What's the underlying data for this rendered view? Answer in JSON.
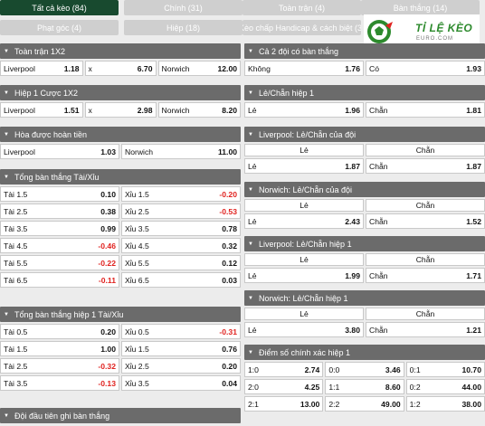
{
  "tabs": [
    {
      "label": "Tất cả kèo (84)",
      "active": true
    },
    {
      "label": "Chính (31)"
    },
    {
      "label": "Toàn trận (4)"
    },
    {
      "label": "Bàn thắng (14)"
    },
    {
      "label": "Phạt góc (4)"
    },
    {
      "label": "Hiệp (18)"
    },
    {
      "label": "Kèo chấp Handicap & cách biệt (3)"
    }
  ],
  "logo": {
    "text": "TỈ LỆ KÈO",
    "sub": "EURO.COM"
  },
  "colors": {
    "active_tab": "#184a2f",
    "header": "#6b6b6b",
    "negative": "#e0221f",
    "logo_green": "#2d8a2d"
  },
  "markets_left": [
    {
      "title": "Toàn trận 1X2",
      "rows": [
        [
          {
            "l": "Liverpool",
            "v": "1.18"
          },
          {
            "l": "x",
            "v": "6.70"
          },
          {
            "l": "Norwich",
            "v": "12.00"
          }
        ]
      ]
    },
    {
      "title": "Hiệp 1 Cược 1X2",
      "rows": [
        [
          {
            "l": "Liverpool",
            "v": "1.51"
          },
          {
            "l": "x",
            "v": "2.98"
          },
          {
            "l": "Norwich",
            "v": "8.20"
          }
        ]
      ]
    },
    {
      "title": "Hòa được hoàn tiền",
      "rows": [
        [
          {
            "l": "Liverpool",
            "v": "1.03"
          },
          {
            "l": "Norwich",
            "v": "11.00"
          }
        ]
      ]
    },
    {
      "title": "Tổng bàn thắng Tài/Xỉu",
      "rows": [
        [
          {
            "l": "Tài 1.5",
            "v": "0.10"
          },
          {
            "l": "Xỉu 1.5",
            "v": "-0.20",
            "n": true
          }
        ],
        [
          {
            "l": "Tài 2.5",
            "v": "0.38"
          },
          {
            "l": "Xỉu 2.5",
            "v": "-0.53",
            "n": true
          }
        ],
        [
          {
            "l": "Tài 3.5",
            "v": "0.99"
          },
          {
            "l": "Xỉu 3.5",
            "v": "0.78"
          }
        ],
        [
          {
            "l": "Tài 4.5",
            "v": "-0.46",
            "n": true
          },
          {
            "l": "Xỉu 4.5",
            "v": "0.32"
          }
        ],
        [
          {
            "l": "Tài 5.5",
            "v": "-0.22",
            "n": true
          },
          {
            "l": "Xỉu 5.5",
            "v": "0.12"
          }
        ],
        [
          {
            "l": "Tài 6.5",
            "v": "-0.11",
            "n": true
          },
          {
            "l": "Xỉu 6.5",
            "v": "0.03"
          }
        ]
      ]
    },
    {
      "title": "Tổng bàn thắng hiệp 1 Tài/Xỉu",
      "rows": [
        [
          {
            "l": "Tài 0.5",
            "v": "0.20"
          },
          {
            "l": "Xỉu 0.5",
            "v": "-0.31",
            "n": true
          }
        ],
        [
          {
            "l": "Tài 1.5",
            "v": "1.00"
          },
          {
            "l": "Xỉu 1.5",
            "v": "0.76"
          }
        ],
        [
          {
            "l": "Tài 2.5",
            "v": "-0.32",
            "n": true
          },
          {
            "l": "Xỉu 2.5",
            "v": "0.20"
          }
        ],
        [
          {
            "l": "Tài 3.5",
            "v": "-0.13",
            "n": true
          },
          {
            "l": "Xỉu 3.5",
            "v": "0.04"
          }
        ]
      ]
    },
    {
      "title": "Đội đầu tiên ghi bàn thắng",
      "rows": []
    }
  ],
  "markets_right": [
    {
      "title": "Cả 2 đội có bàn thắng",
      "rows": [
        [
          {
            "l": "Không",
            "v": "1.76"
          },
          {
            "l": "Có",
            "v": "1.93"
          }
        ]
      ]
    },
    {
      "title": "Lẻ/Chẵn hiệp 1",
      "rows": [
        [
          {
            "l": "Lẻ",
            "v": "1.96"
          },
          {
            "l": "Chẵn",
            "v": "1.81"
          }
        ]
      ]
    },
    {
      "title": "Liverpool: Lẻ/Chẵn của đội",
      "heads": [
        "Lẻ",
        "Chẵn"
      ],
      "rows": [
        [
          {
            "l": "Lẻ",
            "v": "1.87"
          },
          {
            "l": "Chẵn",
            "v": "1.87"
          }
        ]
      ]
    },
    {
      "title": "Norwich: Lẻ/Chẵn của đội",
      "heads": [
        "Lẻ",
        "Chẵn"
      ],
      "rows": [
        [
          {
            "l": "Lẻ",
            "v": "2.43"
          },
          {
            "l": "Chẵn",
            "v": "1.52"
          }
        ]
      ]
    },
    {
      "title": "Liverpool: Lẻ/Chẵn hiệp 1",
      "heads": [
        "Lẻ",
        "Chẵn"
      ],
      "rows": [
        [
          {
            "l": "Lẻ",
            "v": "1.99"
          },
          {
            "l": "Chẵn",
            "v": "1.71"
          }
        ]
      ]
    },
    {
      "title": "Norwich: Lẻ/Chẵn hiệp 1",
      "heads": [
        "Lẻ",
        "Chẵn"
      ],
      "rows": [
        [
          {
            "l": "Lẻ",
            "v": "3.80"
          },
          {
            "l": "Chẵn",
            "v": "1.21"
          }
        ]
      ]
    },
    {
      "title": "Điểm số chính xác hiệp 1",
      "rows": [
        [
          {
            "l": "1:0",
            "v": "2.74"
          },
          {
            "l": "0:0",
            "v": "3.46"
          },
          {
            "l": "0:1",
            "v": "10.70"
          }
        ],
        [
          {
            "l": "2:0",
            "v": "4.25"
          },
          {
            "l": "1:1",
            "v": "8.60"
          },
          {
            "l": "0:2",
            "v": "44.00"
          }
        ],
        [
          {
            "l": "2:1",
            "v": "13.00"
          },
          {
            "l": "2:2",
            "v": "49.00"
          },
          {
            "l": "1:2",
            "v": "38.00"
          }
        ]
      ]
    }
  ]
}
